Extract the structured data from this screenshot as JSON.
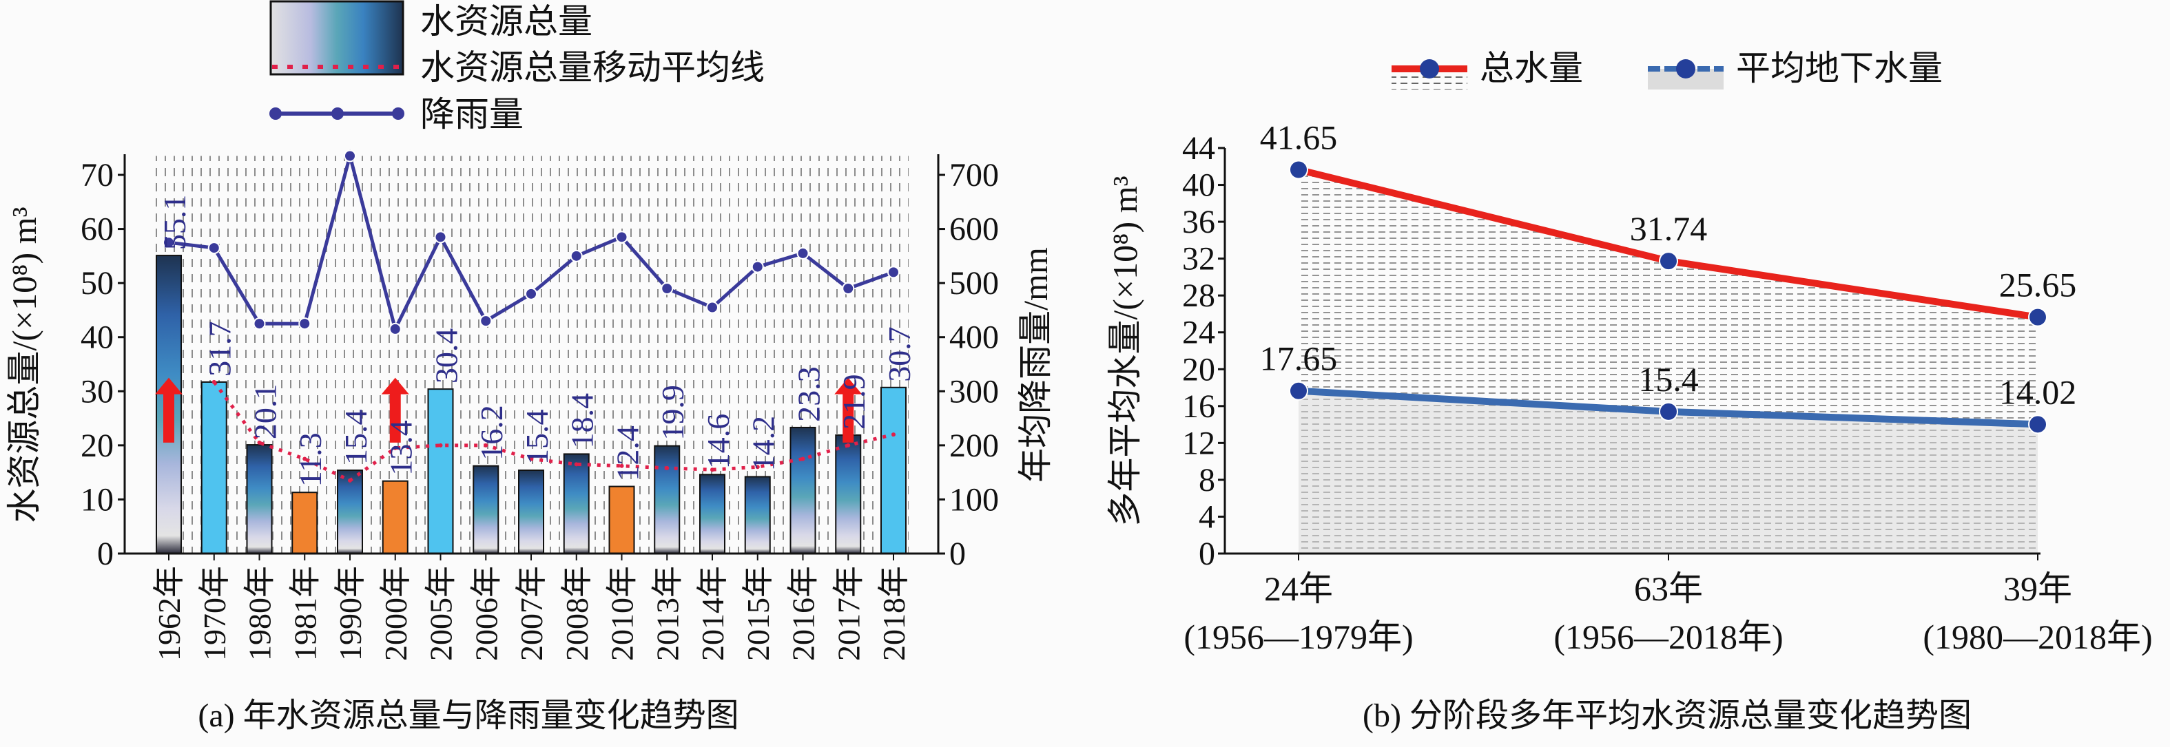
{
  "chart_data": [
    {
      "type": "bar",
      "title": "(a) 年水资源总量与降雨量变化趋势图",
      "xlabel": "",
      "ylabel": "水资源总量/(×10⁸) m³",
      "ylabel_right": "年均降雨量/mm",
      "ylim": [
        0,
        70
      ],
      "ylim_right": [
        0,
        700
      ],
      "yticks": [
        "0",
        "10",
        "20",
        "30",
        "40",
        "50",
        "60",
        "70"
      ],
      "yticks_right": [
        "0",
        "100",
        "200",
        "300",
        "400",
        "500",
        "600",
        "700"
      ],
      "categories": [
        "1962年",
        "1970年",
        "1980年",
        "1981年",
        "1990年",
        "2000年",
        "2005年",
        "2006年",
        "2007年",
        "2008年",
        "2010年",
        "2013年",
        "2014年",
        "2015年",
        "2016年",
        "2017年",
        "2018年"
      ],
      "legend": [
        "水资源总量",
        "水资源总量移动平均线",
        "降雨量"
      ],
      "series": [
        {
          "name": "水资源总量",
          "kind": "bar",
          "values": [
            55.1,
            31.7,
            20.1,
            11.3,
            15.4,
            13.4,
            30.4,
            16.2,
            15.4,
            18.4,
            12.4,
            19.9,
            14.6,
            14.2,
            23.3,
            21.9,
            30.7
          ],
          "labels": [
            "55.1",
            "31.7",
            "20.1",
            "11.3",
            "15.4",
            "13.4",
            "30.4",
            "16.2",
            "15.4",
            "18.4",
            "12.4",
            "19.9",
            "14.6",
            "14.2",
            "23.3",
            "21.9",
            "30.7"
          ],
          "styles": [
            "gradient",
            "light",
            "gradient",
            "orange",
            "gradient",
            "orange",
            "light",
            "gradient",
            "gradient",
            "gradient",
            "orange",
            "gradient",
            "gradient",
            "gradient",
            "gradient",
            "gradient",
            "light"
          ]
        },
        {
          "name": "水资源总量移动平均线",
          "kind": "line",
          "axis": "left",
          "values": [
            null,
            31.7,
            20.5,
            17.5,
            13.5,
            19.5,
            20.0,
            20.0,
            17.5,
            16.5,
            16.2,
            15.8,
            15.5,
            16.0,
            17.5,
            20.0,
            22.0
          ]
        },
        {
          "name": "降雨量",
          "kind": "line",
          "axis": "right",
          "values": [
            575,
            565,
            425,
            425,
            735,
            415,
            585,
            430,
            480,
            550,
            585,
            490,
            455,
            530,
            555,
            490,
            520
          ]
        }
      ],
      "arrows_at": [
        0,
        5,
        15
      ],
      "colors": {
        "light": "#4fc3ef",
        "orange": "#f0822e",
        "rain": "#3a3a9a",
        "ma": "#e0204a",
        "arrow": "#ee1c1c",
        "label": "#2e2e8a"
      }
    },
    {
      "type": "line",
      "title": "(b) 分阶段多年平均水资源总量变化趋势图",
      "xlabel": "",
      "ylabel": "多年平均水量/(×10⁸) m³",
      "ylim": [
        0,
        44
      ],
      "yticks": [
        "0",
        "4",
        "8",
        "12",
        "16",
        "20",
        "24",
        "28",
        "32",
        "36",
        "40",
        "44"
      ],
      "categories": [
        {
          "line1": "24年",
          "line2": "(1956—1979年)"
        },
        {
          "line1": "63年",
          "line2": "(1956—2018年)"
        },
        {
          "line1": "39年",
          "line2": "(1980—2018年)"
        }
      ],
      "legend": [
        "总水量",
        "平均地下水量"
      ],
      "series": [
        {
          "name": "总水量",
          "values": [
            41.65,
            31.74,
            25.65
          ],
          "labels": [
            "41.65",
            "31.74",
            "25.65"
          ],
          "color": "#e8231c"
        },
        {
          "name": "平均地下水量",
          "values": [
            17.65,
            15.4,
            14.02
          ],
          "labels": [
            "17.65",
            "15.4",
            "14.02"
          ],
          "color": "#3a6ab0"
        }
      ],
      "marker_color": "#243f9a"
    }
  ]
}
